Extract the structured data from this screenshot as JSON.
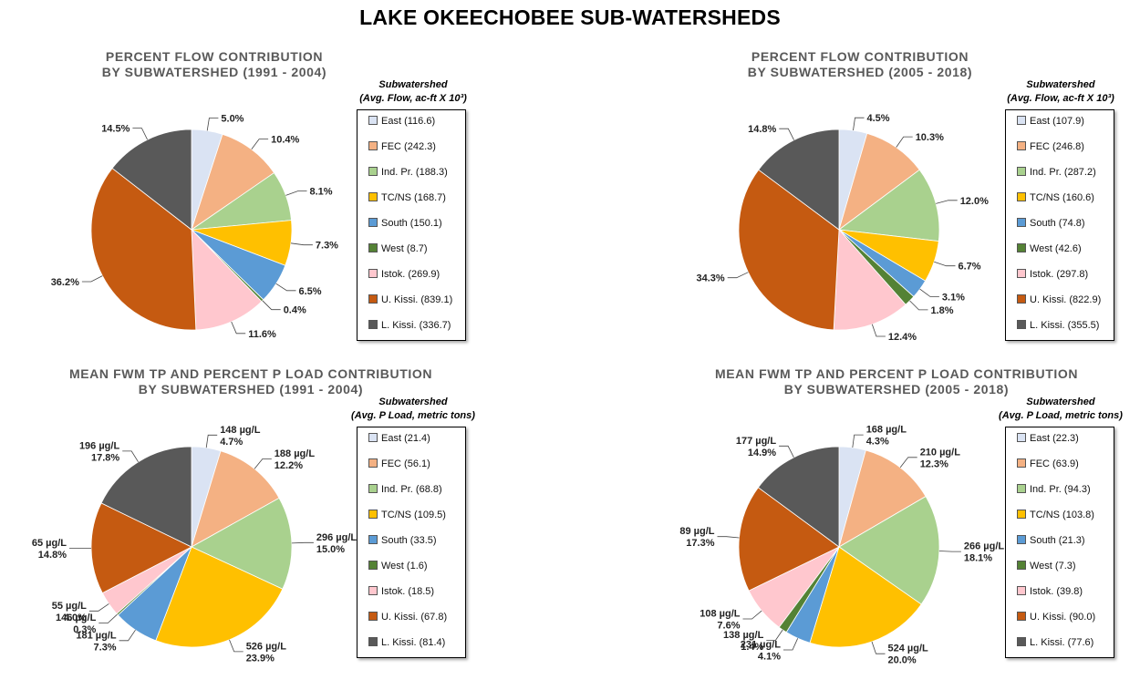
{
  "title": "LAKE OKEECHOBEE SUB-WATERSHEDS",
  "colors": {
    "East": "#dae3f3",
    "FEC": "#f4b183",
    "Ind. Pr.": "#a9d18e",
    "TC/NS": "#ffc000",
    "South": "#5b9bd5",
    "West": "#548235",
    "Istok.": "#ffc7ce",
    "U. Kissi.": "#c55a11",
    "L. Kissi.": "#595959"
  },
  "chart_data": [
    {
      "type": "pie",
      "title": "PERCENT FLOW CONTRIBUTION",
      "subtitle": "BY SUBWATERSHED (1991 - 2004)",
      "legend_title": "Subwatershed",
      "legend_subtitle": "(Avg. Flow, ac-ft X 10³)",
      "legend_placement": "right",
      "slices": [
        {
          "label": "East",
          "legend": "East (116.6)",
          "value": 5.0,
          "display": [
            "5.0%"
          ]
        },
        {
          "label": "FEC",
          "legend": "FEC (242.3)",
          "value": 10.4,
          "display": [
            "10.4%"
          ]
        },
        {
          "label": "Ind. Pr.",
          "legend": "Ind. Pr. (188.3)",
          "value": 8.1,
          "display": [
            "8.1%"
          ]
        },
        {
          "label": "TC/NS",
          "legend": "TC/NS (168.7)",
          "value": 7.3,
          "display": [
            "7.3%"
          ]
        },
        {
          "label": "South",
          "legend": "South (150.1)",
          "value": 6.5,
          "display": [
            "6.5%"
          ]
        },
        {
          "label": "West",
          "legend": "West (8.7)",
          "value": 0.4,
          "display": [
            "0.4%"
          ]
        },
        {
          "label": "Istok.",
          "legend": "Istok. (269.9)",
          "value": 11.6,
          "display": [
            "11.6%"
          ]
        },
        {
          "label": "U. Kissi.",
          "legend": "U. Kissi. (839.1)",
          "value": 36.2,
          "display": [
            "36.2%"
          ]
        },
        {
          "label": "L. Kissi.",
          "legend": "L. Kissi. (336.7)",
          "value": 14.5,
          "display": [
            "14.5%"
          ]
        }
      ]
    },
    {
      "type": "pie",
      "title": "PERCENT FLOW CONTRIBUTION",
      "subtitle": "BY SUBWATERSHED (2005 - 2018)",
      "legend_title": "Subwatershed",
      "legend_subtitle": "(Avg. Flow, ac-ft X 10³)",
      "legend_placement": "right",
      "slices": [
        {
          "label": "East",
          "legend": "East (107.9)",
          "value": 4.5,
          "display": [
            "4.5%"
          ]
        },
        {
          "label": "FEC",
          "legend": "FEC (246.8)",
          "value": 10.3,
          "display": [
            "10.3%"
          ]
        },
        {
          "label": "Ind. Pr.",
          "legend": "Ind. Pr. (287.2)",
          "value": 12.0,
          "display": [
            "12.0%"
          ]
        },
        {
          "label": "TC/NS",
          "legend": "TC/NS (160.6)",
          "value": 6.7,
          "display": [
            "6.7%"
          ]
        },
        {
          "label": "South",
          "legend": "South (74.8)",
          "value": 3.1,
          "display": [
            "3.1%"
          ]
        },
        {
          "label": "West",
          "legend": "West (42.6)",
          "value": 1.8,
          "display": [
            "1.8%"
          ]
        },
        {
          "label": "Istok.",
          "legend": "Istok. (297.8)",
          "value": 12.4,
          "display": [
            "12.4%"
          ]
        },
        {
          "label": "U. Kissi.",
          "legend": "U. Kissi. (822.9)",
          "value": 34.3,
          "display": [
            "34.3%"
          ]
        },
        {
          "label": "L. Kissi.",
          "legend": "L. Kissi. (355.5)",
          "value": 14.8,
          "display": [
            "14.8%"
          ]
        }
      ]
    },
    {
      "type": "pie",
      "title": "MEAN FWM TP AND PERCENT P LOAD CONTRIBUTION",
      "subtitle": "BY SUBWATERSHED (1991 - 2004)",
      "legend_title": "Subwatershed",
      "legend_subtitle": "(Avg. P Load, metric tons)",
      "legend_placement": "right",
      "slices": [
        {
          "label": "East",
          "legend": "East (21.4)",
          "value": 4.7,
          "display": [
            "148 µg/L",
            "4.7%"
          ]
        },
        {
          "label": "FEC",
          "legend": "FEC (56.1)",
          "value": 12.2,
          "display": [
            "188 µg/L",
            "12.2%"
          ]
        },
        {
          "label": "Ind. Pr.",
          "legend": "Ind. Pr. (68.8)",
          "value": 15.0,
          "display": [
            "296 µg/L",
            "15.0%"
          ]
        },
        {
          "label": "TC/NS",
          "legend": "TC/NS (109.5)",
          "value": 23.9,
          "display": [
            "526 µg/L",
            "23.9%"
          ]
        },
        {
          "label": "South",
          "legend": "South (33.5)",
          "value": 7.3,
          "display": [
            "181 µg/L",
            "7.3%"
          ]
        },
        {
          "label": "West",
          "legend": "West (1.6)",
          "value": 0.3,
          "display": [
            "146 µg/L",
            "0.3%"
          ]
        },
        {
          "label": "Istok.",
          "legend": "Istok. (18.5)",
          "value": 4.0,
          "display": [
            "55 µg/L",
            "4.0%"
          ]
        },
        {
          "label": "U. Kissi.",
          "legend": "U. Kissi. (67.8)",
          "value": 14.8,
          "display": [
            "65 µg/L",
            "14.8%"
          ]
        },
        {
          "label": "L. Kissi.",
          "legend": "L. Kissi. (81.4)",
          "value": 17.8,
          "display": [
            "196 µg/L",
            "17.8%"
          ]
        }
      ]
    },
    {
      "type": "pie",
      "title": "MEAN FWM TP AND PERCENT P LOAD CONTRIBUTION",
      "subtitle": "BY SUBWATERSHED (2005 - 2018)",
      "legend_title": "Subwatershed",
      "legend_subtitle": "(Avg. P Load, metric tons)",
      "legend_placement": "right",
      "slices": [
        {
          "label": "East",
          "legend": "East (22.3)",
          "value": 4.3,
          "display": [
            "168 µg/L",
            "4.3%"
          ]
        },
        {
          "label": "FEC",
          "legend": "FEC (63.9)",
          "value": 12.3,
          "display": [
            "210 µg/L",
            "12.3%"
          ]
        },
        {
          "label": "Ind. Pr.",
          "legend": "Ind. Pr. (94.3)",
          "value": 18.1,
          "display": [
            "266 µg/L",
            "18.1%"
          ]
        },
        {
          "label": "TC/NS",
          "legend": "TC/NS (103.8)",
          "value": 20.0,
          "display": [
            "524 µg/L",
            "20.0%"
          ]
        },
        {
          "label": "South",
          "legend": "South (21.3)",
          "value": 4.1,
          "display": [
            "231 µg/L",
            "4.1%"
          ]
        },
        {
          "label": "West",
          "legend": "West (7.3)",
          "value": 1.4,
          "display": [
            "138 µg/L",
            "1.4%"
          ]
        },
        {
          "label": "Istok.",
          "legend": "Istok. (39.8)",
          "value": 7.6,
          "display": [
            "108 µg/L",
            "7.6%"
          ]
        },
        {
          "label": "U. Kissi.",
          "legend": "U. Kissi. (90.0)",
          "value": 17.3,
          "display": [
            "89 µg/L",
            "17.3%"
          ]
        },
        {
          "label": "L. Kissi.",
          "legend": "L. Kissi. (77.6)",
          "value": 14.9,
          "display": [
            "177 µg/L",
            "14.9%"
          ]
        }
      ]
    }
  ]
}
